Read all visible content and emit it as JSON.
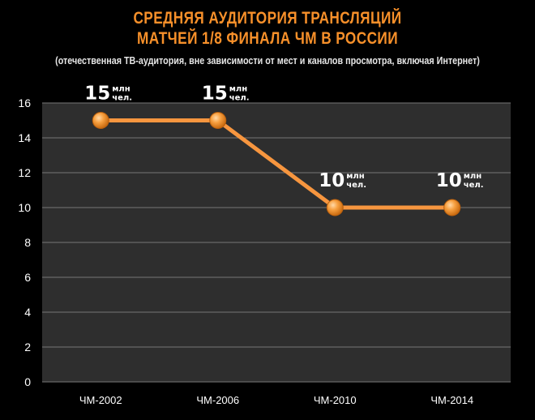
{
  "chart_data": {
    "type": "line",
    "title_line1": "СРЕДНЯЯ АУДИТОРИЯ ТРАНСЛЯЦИЙ",
    "title_line2": "МАТЧЕЙ 1/8 ФИНАЛА ЧМ В РОССИИ",
    "subtitle": "(отечественная ТВ-аудитория, вне зависимости от мест и каналов просмотра, включая Интернет)",
    "categories": [
      "ЧМ-2002",
      "ЧМ-2006",
      "ЧМ-2010",
      "ЧМ-2014"
    ],
    "values": [
      15,
      15,
      10,
      10
    ],
    "data_labels": [
      {
        "value": "15",
        "unit_top": "млн",
        "unit_bottom": "чел."
      },
      {
        "value": "15",
        "unit_top": "млн",
        "unit_bottom": "чел."
      },
      {
        "value": "10",
        "unit_top": "млн",
        "unit_bottom": "чел."
      },
      {
        "value": "10",
        "unit_top": "млн",
        "unit_bottom": "чел."
      }
    ],
    "ylim": [
      0,
      16
    ],
    "yticks": [
      0,
      2,
      4,
      6,
      8,
      10,
      12,
      14,
      16
    ],
    "grid": true,
    "legend": "none",
    "colors": {
      "title": "#F7902A",
      "line": "#F7963F",
      "marker": "#F7902A",
      "plot_background": "#2E2E2E",
      "grid": "#777777",
      "page_background": "#000000"
    }
  }
}
